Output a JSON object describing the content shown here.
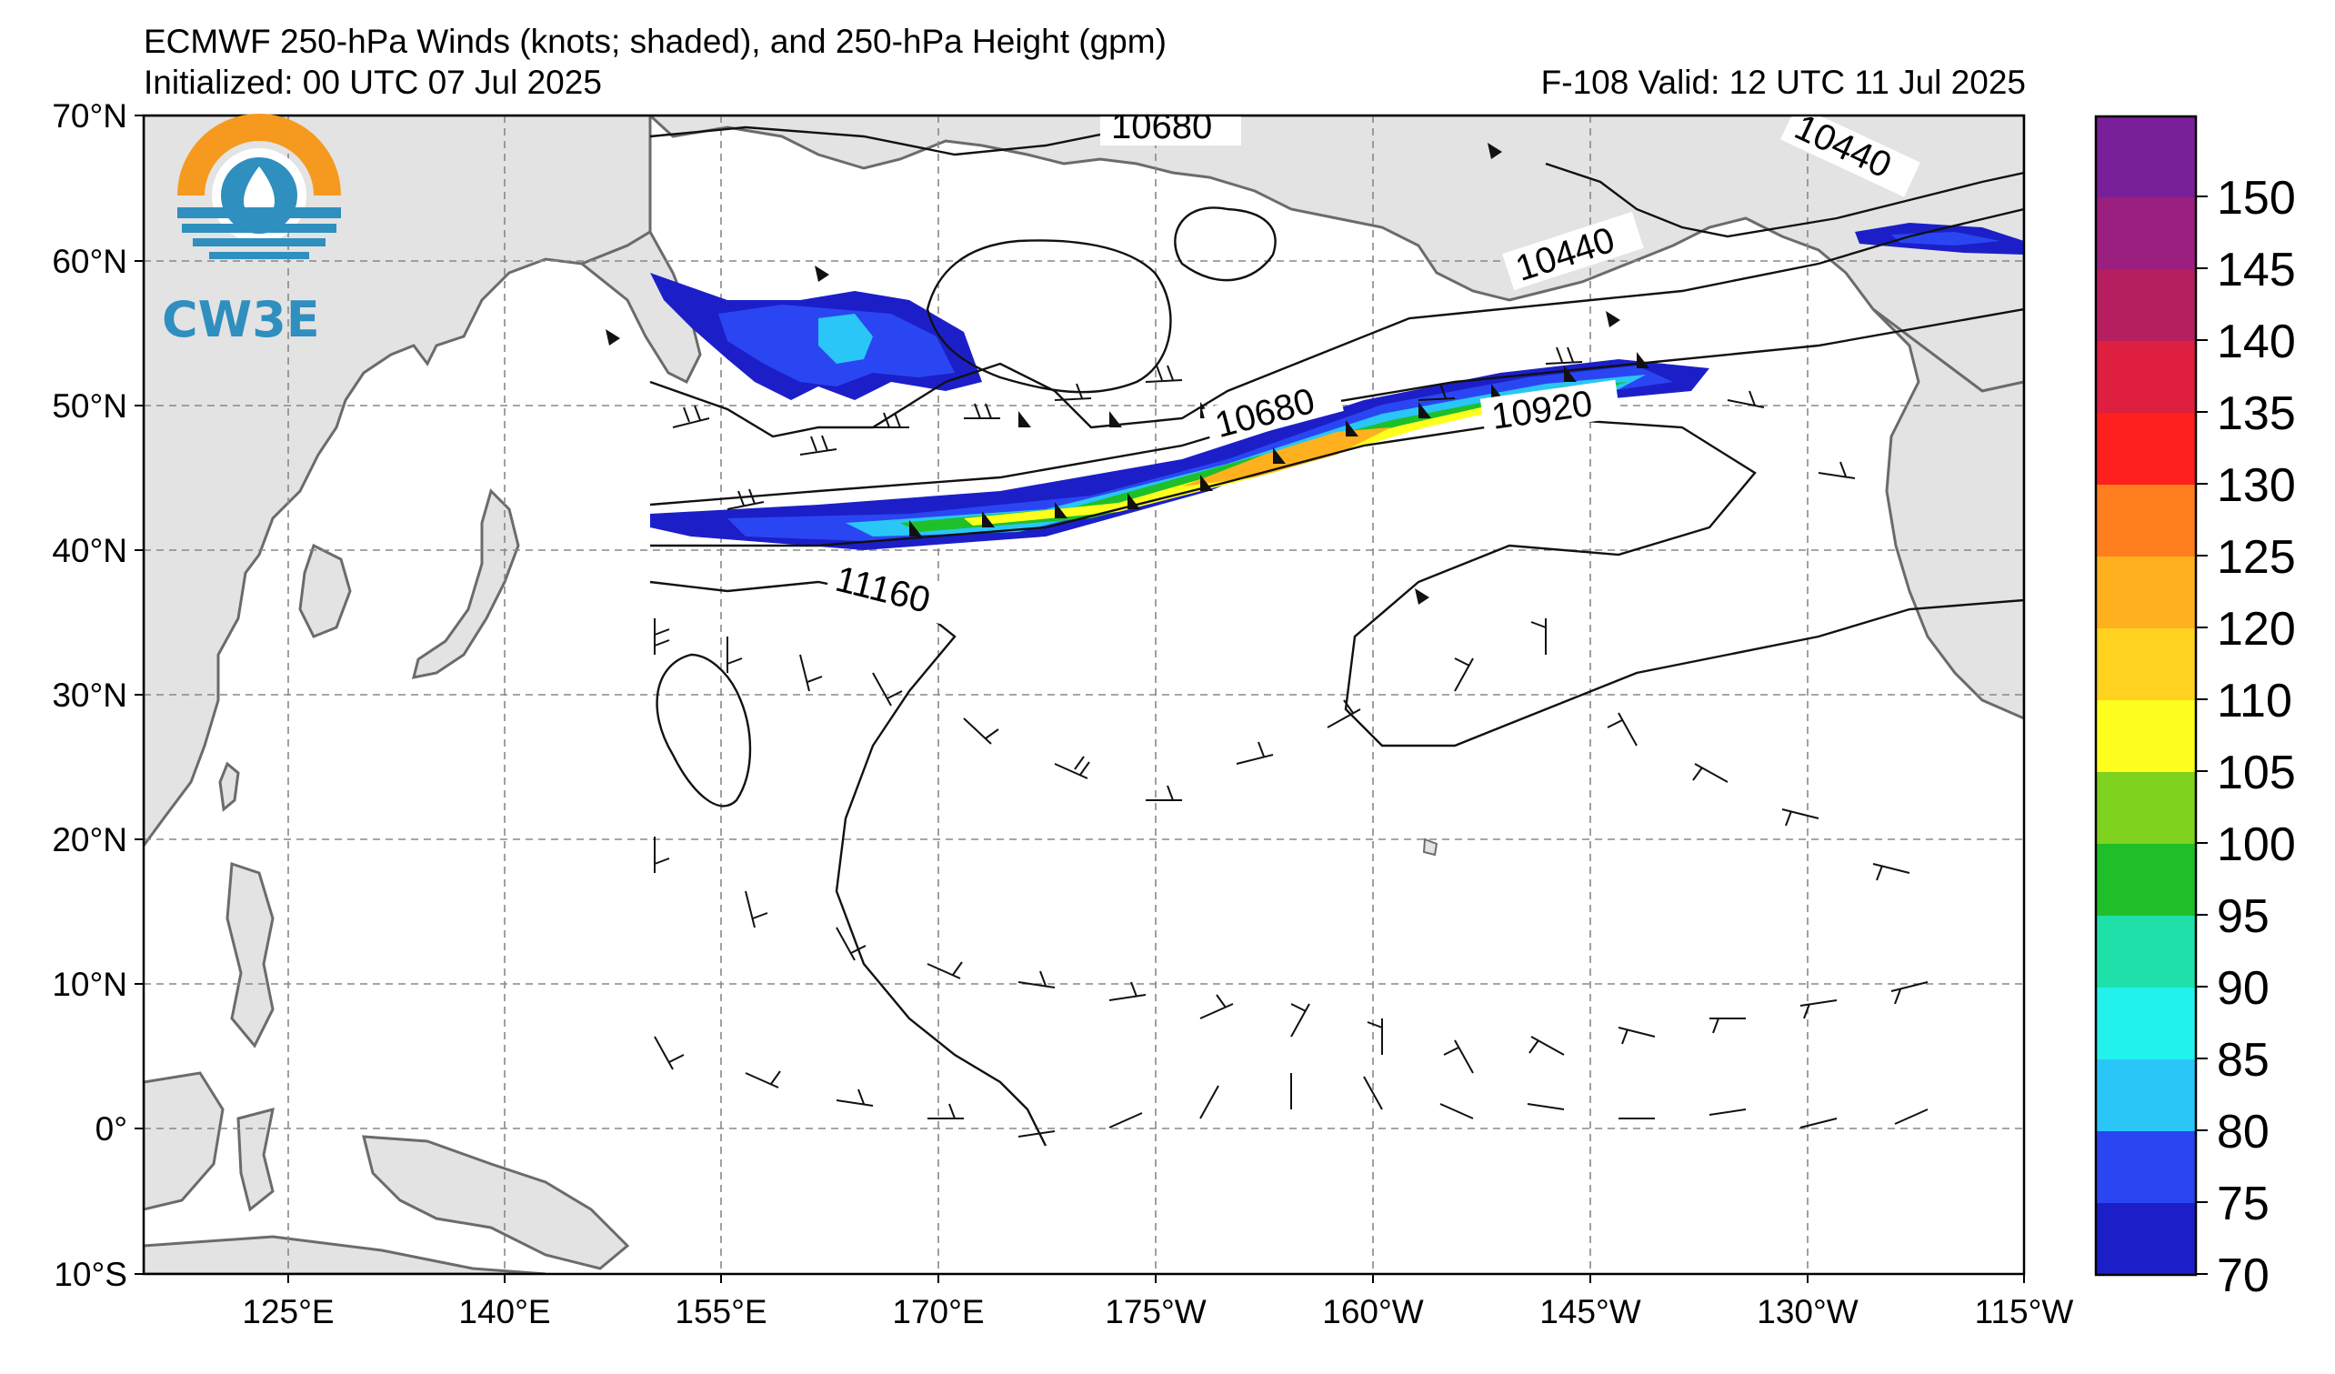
{
  "header": {
    "title": "ECMWF 250-hPa Winds (knots; shaded), and 250-hPa Height (gpm)",
    "initialized": "Initialized: 00 UTC 07 Jul 2025",
    "valid": "F-108  Valid: 12 UTC 11 Jul 2025"
  },
  "logo": {
    "text": "CW3E"
  },
  "map": {
    "lat_labels": [
      "70°N",
      "60°N",
      "50°N",
      "40°N",
      "30°N",
      "20°N",
      "10°N",
      "0°",
      "10°S"
    ],
    "lon_labels": [
      "125°E",
      "140°E",
      "155°E",
      "170°E",
      "175°W",
      "160°W",
      "145°W",
      "130°W",
      "115°W"
    ],
    "contour_labels": [
      "10680",
      "10440",
      "10440",
      "10680",
      "10920",
      "11160"
    ],
    "land_color": "#e3e3e3",
    "coast_color": "#6b6b6b",
    "grid_color": "#888888"
  },
  "colorbar": {
    "units": "knots",
    "levels": [
      "70",
      "75",
      "80",
      "85",
      "90",
      "95",
      "100",
      "105",
      "110",
      "120",
      "125",
      "130",
      "135",
      "140",
      "145",
      "150"
    ],
    "colors": [
      "#1c1fc8",
      "#2a46f2",
      "#2ac6f7",
      "#22f2ee",
      "#1fe0a8",
      "#1fbf2a",
      "#7fd31f",
      "#ffff1f",
      "#ffd21f",
      "#ffb01f",
      "#ff7f1f",
      "#ff1f1f",
      "#de1f3f",
      "#b51f5f",
      "#9a1f7f",
      "#7a1f9a"
    ]
  },
  "legend_icons": {
    "logo": "cw3e-logo-icon"
  }
}
